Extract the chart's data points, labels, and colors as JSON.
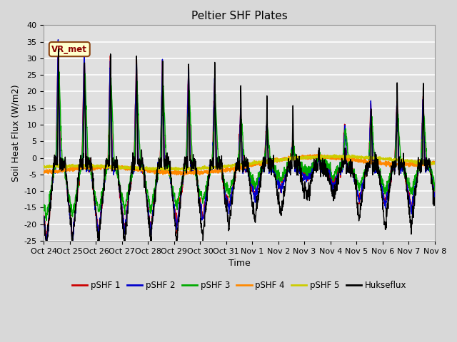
{
  "title": "Peltier SHF Plates",
  "ylabel": "Soil Heat Flux (W/m2)",
  "xlabel": "Time",
  "ylim": [
    -25,
    40
  ],
  "yticks": [
    -25,
    -20,
    -15,
    -10,
    -5,
    0,
    5,
    10,
    15,
    20,
    25,
    30,
    35,
    40
  ],
  "xtick_labels": [
    "Oct 24",
    "Oct 25",
    "Oct 26",
    "Oct 27",
    "Oct 28",
    "Oct 29",
    "Oct 30",
    "Oct 31",
    "Nov 1",
    "Nov 2",
    "Nov 3",
    "Nov 4",
    "Nov 5",
    "Nov 6",
    "Nov 7",
    "Nov 8"
  ],
  "series_colors": [
    "#cc0000",
    "#0000cc",
    "#00aa00",
    "#ff8800",
    "#cccc00",
    "#000000"
  ],
  "series_labels": [
    "pSHF 1",
    "pSHF 2",
    "pSHF 3",
    "pSHF 4",
    "pSHF 5",
    "Hukseflux"
  ],
  "annotation_text": "VR_met",
  "background_color": "#e8e8e8",
  "grid_color": "#ffffff",
  "title_fontsize": 11,
  "label_fontsize": 9,
  "tick_fontsize": 8
}
